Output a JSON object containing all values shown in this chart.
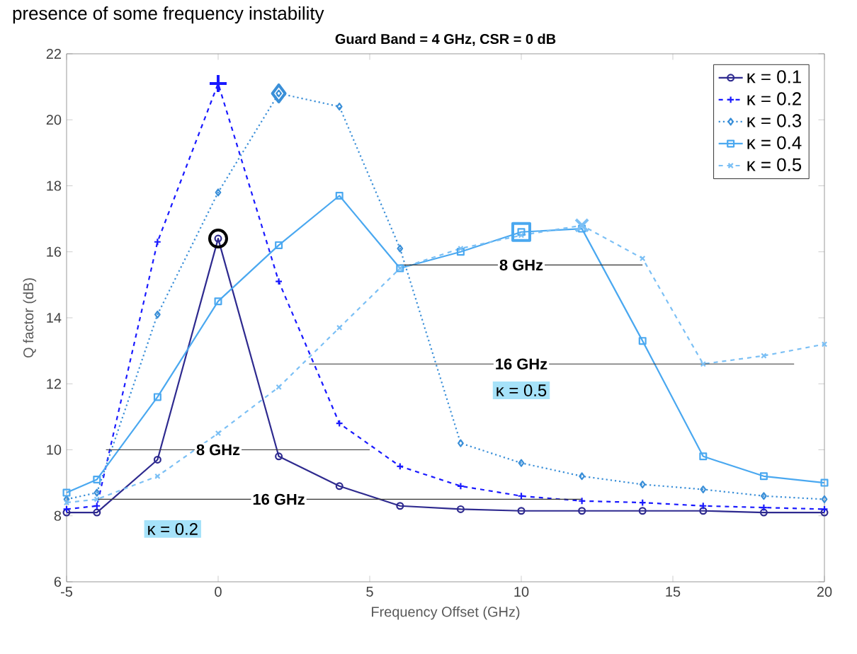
{
  "chart_data": {
    "type": "line",
    "title": "Guard Band = 4 GHz,  CSR = 0 dB",
    "xlabel": "Frequency Offset (GHz)",
    "ylabel": "Q factor (dB)",
    "x": [
      -5,
      -4,
      -2,
      0,
      2,
      4,
      6,
      8,
      10,
      12,
      14,
      16,
      18,
      20
    ],
    "xlim": [
      -5,
      20
    ],
    "xticks": [
      -5,
      0,
      5,
      10,
      15,
      20
    ],
    "ylim": [
      6,
      22
    ],
    "yticks": [
      6,
      8,
      10,
      12,
      14,
      16,
      18,
      20,
      22
    ],
    "legend": "top right",
    "grid": false,
    "series": [
      {
        "name": "κ = 0.1",
        "color": "#2e2a8f",
        "line_style": "solid",
        "marker": "circle",
        "values": [
          8.1,
          8.1,
          9.7,
          16.4,
          9.8,
          8.9,
          8.3,
          8.2,
          8.15,
          8.15,
          8.15,
          8.15,
          8.1,
          8.1
        ]
      },
      {
        "name": "κ = 0.2",
        "color": "#1a1aff",
        "line_style": "dashed",
        "marker": "plus",
        "values": [
          8.2,
          8.3,
          16.3,
          21.1,
          15.1,
          10.8,
          9.5,
          8.9,
          8.6,
          8.45,
          8.4,
          8.3,
          8.25,
          8.2
        ]
      },
      {
        "name": "κ = 0.3",
        "color": "#3a8fd8",
        "line_style": "dotted",
        "marker": "diamond",
        "values": [
          8.5,
          8.7,
          14.1,
          17.8,
          20.8,
          20.4,
          16.1,
          10.2,
          9.6,
          9.2,
          8.95,
          8.8,
          8.6,
          8.5
        ]
      },
      {
        "name": "κ = 0.4",
        "color": "#4aa8f0",
        "line_style": "solid",
        "marker": "square",
        "values": [
          8.7,
          9.1,
          11.6,
          14.5,
          16.2,
          17.7,
          15.5,
          16.0,
          16.6,
          16.7,
          13.3,
          9.8,
          9.2,
          9.0
        ]
      },
      {
        "name": "κ = 0.5",
        "color": "#7cc0f5",
        "line_style": "dashed",
        "marker": "cross",
        "values": [
          8.4,
          8.5,
          9.2,
          10.5,
          11.9,
          13.7,
          15.5,
          16.1,
          16.5,
          16.8,
          15.8,
          12.6,
          12.85,
          13.2
        ]
      },
      {
        "type": "scatter",
        "color": "#2e2a8f",
        "marker": "circle",
        "x": [
          0
        ],
        "values": [
          16.4
        ]
      },
      {
        "type": "scatter",
        "color": "#1a1aff",
        "marker": "plus",
        "x": [
          0
        ],
        "values": [
          21.1
        ]
      },
      {
        "type": "scatter",
        "color": "#3a8fd8",
        "marker": "diamond",
        "x": [
          2
        ],
        "values": [
          20.8
        ]
      },
      {
        "type": "scatter",
        "color": "#4aa8f0",
        "marker": "square",
        "x": [
          10
        ],
        "values": [
          16.6
        ]
      },
      {
        "type": "scatter",
        "color": "#7cc0f5",
        "marker": "cross",
        "x": [
          12
        ],
        "values": [
          16.8
        ]
      },
      {
        "type": "line",
        "color": "#333333",
        "line_style": "solid",
        "marker": "none",
        "x": [
          -3.7,
          5
        ],
        "values": [
          10,
          10
        ]
      },
      {
        "type": "line",
        "color": "#333333",
        "line_style": "solid",
        "marker": "none",
        "x": [
          -4,
          12
        ],
        "values": [
          8.5,
          8.5
        ]
      },
      {
        "type": "line",
        "color": "#333333",
        "line_style": "solid",
        "marker": "none",
        "x": [
          6,
          14
        ],
        "values": [
          15.6,
          15.6
        ]
      },
      {
        "type": "line",
        "color": "#333333",
        "line_style": "solid",
        "marker": "none",
        "x": [
          3,
          19
        ],
        "values": [
          12.6,
          12.6
        ]
      }
    ],
    "annotations": [
      "presence of some frequency instability",
      {
        "text": "8 GHz",
        "x": 0,
        "y": 10
      },
      {
        "text": "16 GHz",
        "x": 2,
        "y": 8.5
      },
      {
        "text": "8 GHz",
        "x": 10,
        "y": 15.6
      },
      {
        "text": "16 GHz",
        "x": 10,
        "y": 12.6
      },
      {
        "text": "κ = 0.2",
        "x": -1.5,
        "y": 7.6
      },
      {
        "text": "κ = 0.5",
        "x": 10,
        "y": 11.8
      }
    ]
  }
}
